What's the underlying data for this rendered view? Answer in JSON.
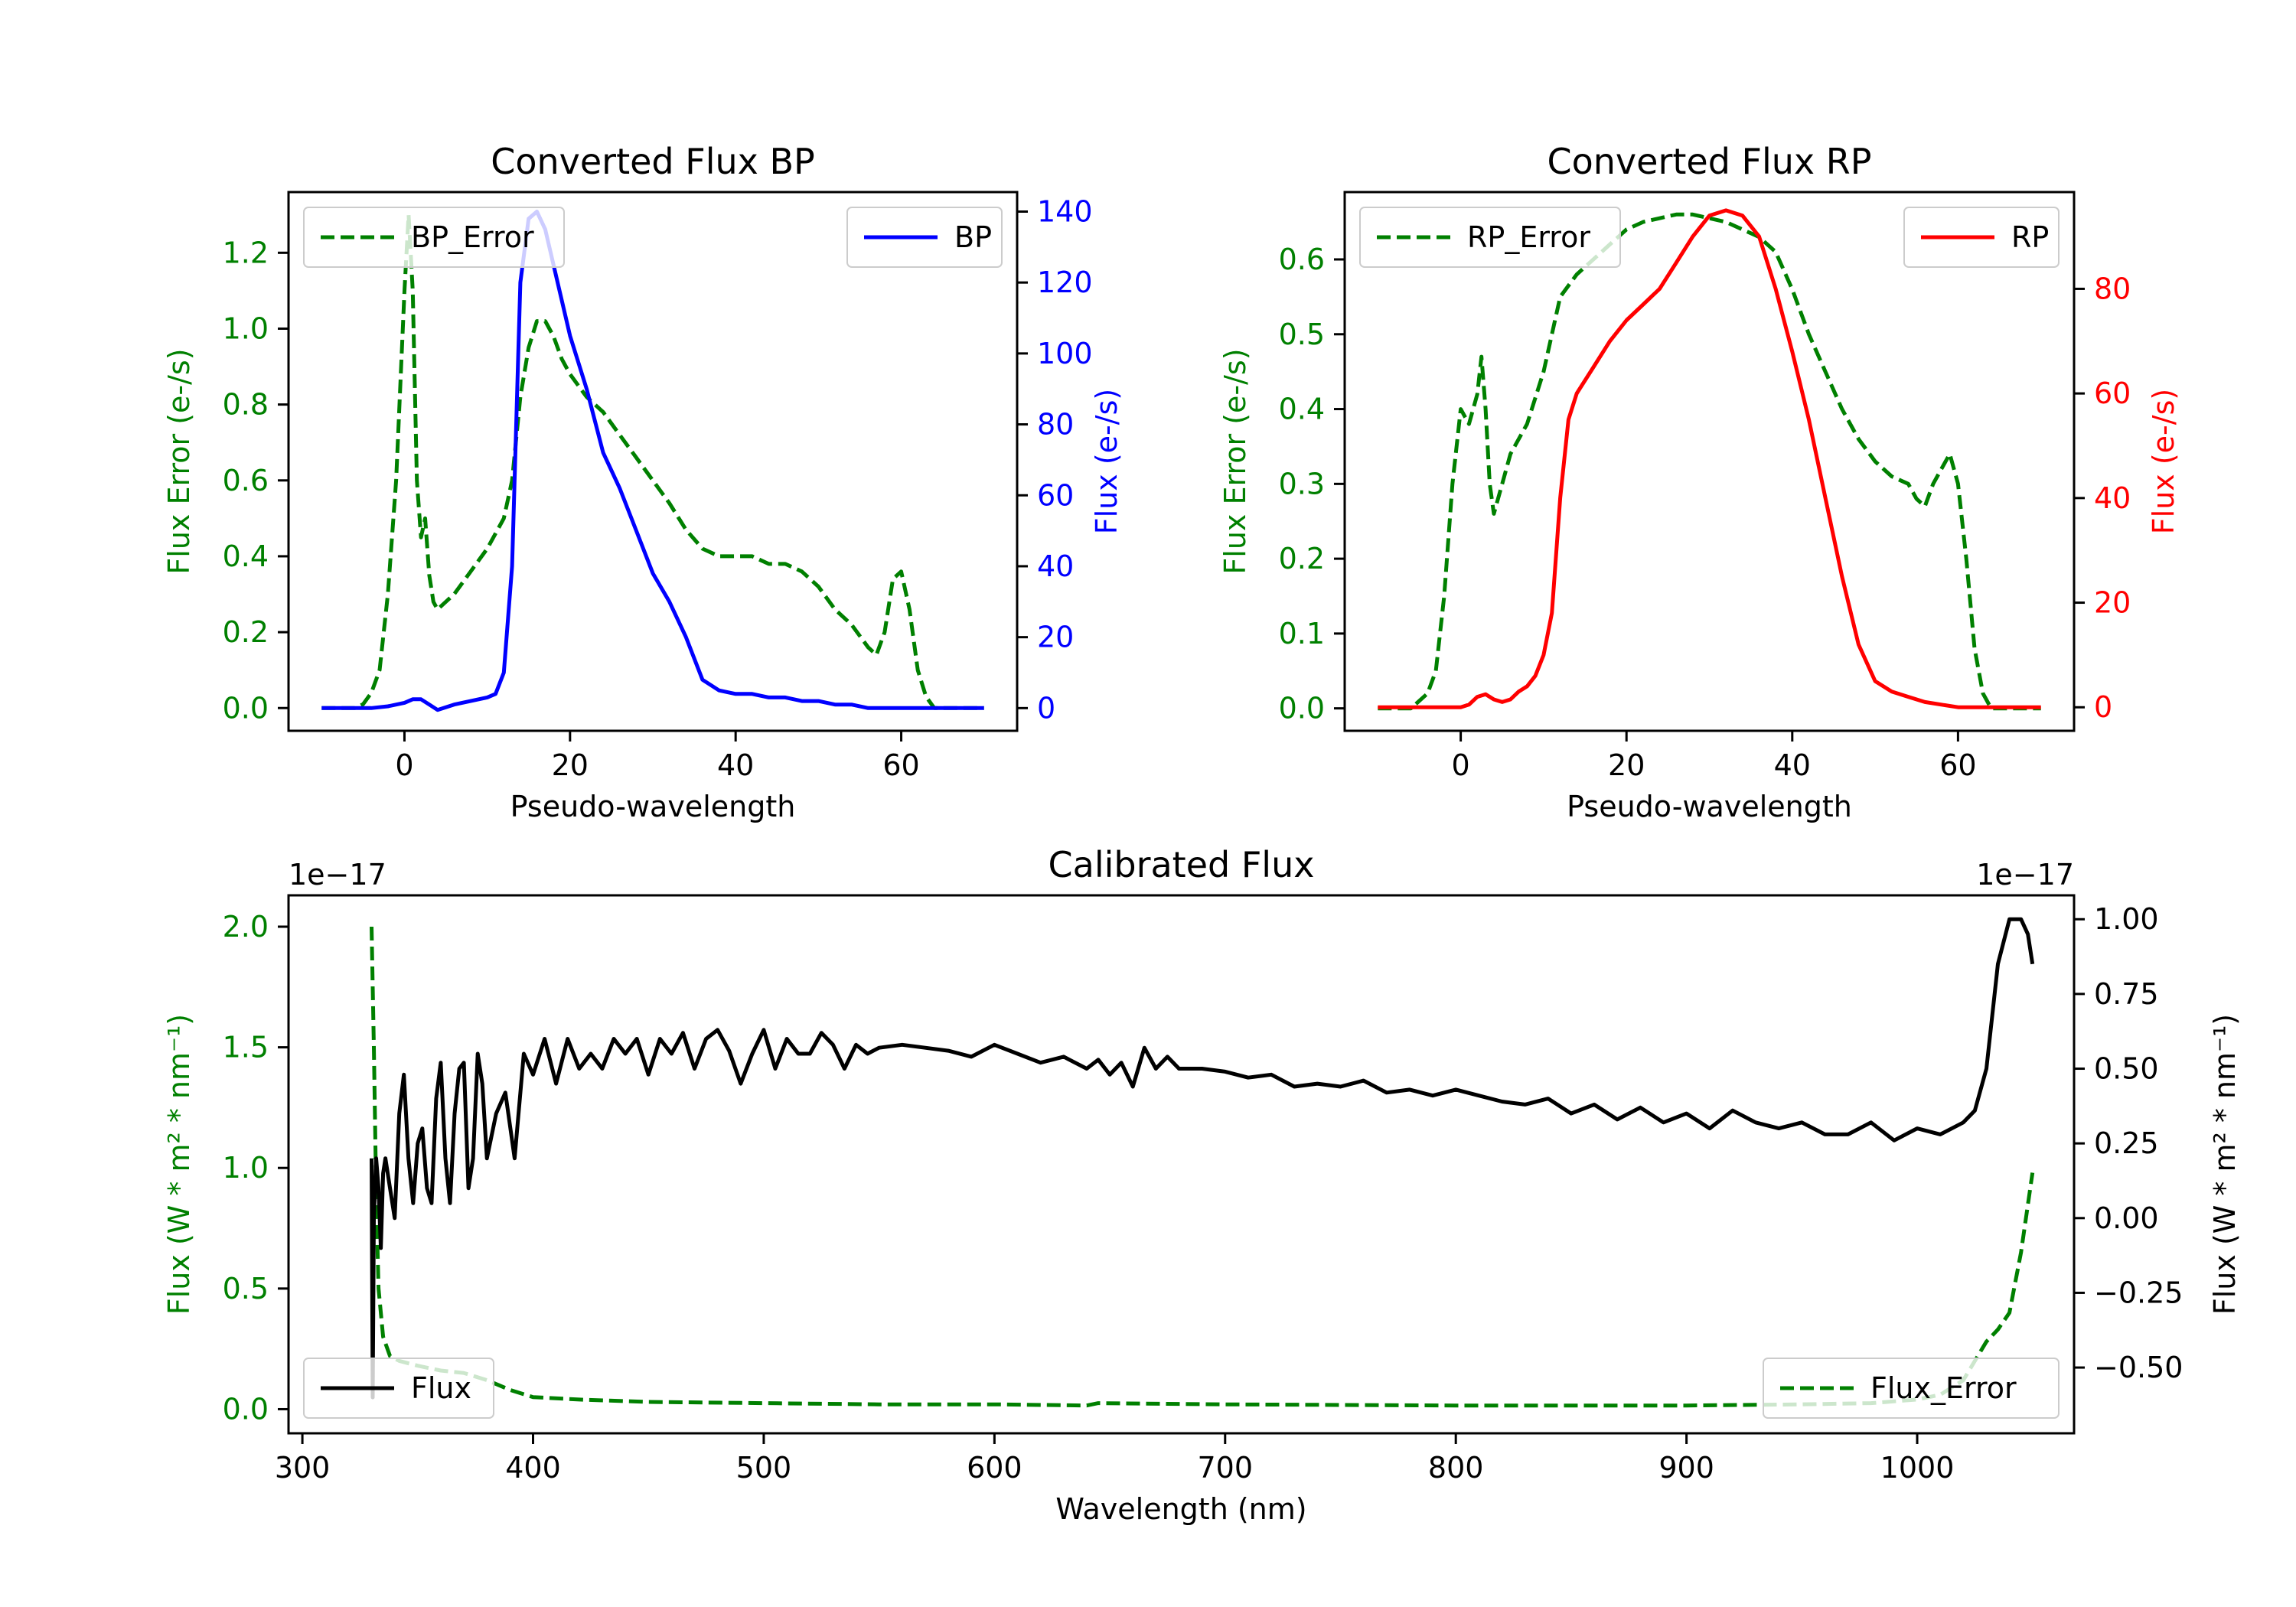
{
  "chart_data": [
    {
      "id": "bp",
      "type": "line",
      "title": "Converted Flux BP",
      "xlabel": "Pseudo-wavelength",
      "xlim": [
        -14,
        74
      ],
      "xticks": [
        0,
        20,
        40,
        60
      ],
      "left_axis": {
        "label": "Flux Error (e-/s)",
        "color": "#008000",
        "ylim": [
          -0.06,
          1.36
        ],
        "ticks": [
          0.0,
          0.2,
          0.4,
          0.6,
          0.8,
          1.0,
          1.2
        ],
        "tick_labels": [
          "0.0",
          "0.2",
          "0.4",
          "0.6",
          "0.8",
          "1.0",
          "1.2"
        ]
      },
      "right_axis": {
        "label": "Flux (e-/s)",
        "color": "#0000ff",
        "ylim": [
          -6.4,
          145.5
        ],
        "ticks": [
          0,
          20,
          40,
          60,
          80,
          100,
          120,
          140
        ],
        "tick_labels": [
          "0",
          "20",
          "40",
          "60",
          "80",
          "100",
          "120",
          "140"
        ]
      },
      "series": [
        {
          "name": "BP_Error",
          "axis": "left",
          "color": "#008000",
          "style": "dashed",
          "x": [
            -10,
            -6,
            -5,
            -4,
            -3,
            -2,
            -1,
            0,
            0.5,
            1,
            1.5,
            2,
            2.5,
            3,
            3.5,
            4,
            5,
            6,
            8,
            10,
            12,
            13,
            14,
            15,
            16,
            17,
            18,
            19,
            20,
            22,
            24,
            26,
            28,
            30,
            32,
            34,
            36,
            38,
            40,
            42,
            44,
            46,
            48,
            50,
            52,
            54,
            56,
            57,
            58,
            59,
            60,
            61,
            62,
            63,
            64,
            66,
            68,
            70
          ],
          "y": [
            0,
            0,
            0.01,
            0.04,
            0.1,
            0.3,
            0.6,
            1.1,
            1.3,
            1.1,
            0.6,
            0.45,
            0.5,
            0.35,
            0.28,
            0.26,
            0.28,
            0.3,
            0.36,
            0.42,
            0.5,
            0.6,
            0.82,
            0.95,
            1.02,
            1.02,
            0.98,
            0.92,
            0.88,
            0.82,
            0.78,
            0.72,
            0.66,
            0.6,
            0.54,
            0.47,
            0.42,
            0.4,
            0.4,
            0.4,
            0.38,
            0.38,
            0.36,
            0.32,
            0.26,
            0.22,
            0.16,
            0.14,
            0.2,
            0.34,
            0.36,
            0.26,
            0.1,
            0.03,
            0,
            0,
            0,
            0
          ]
        },
        {
          "name": "BP",
          "axis": "right",
          "color": "#0000ff",
          "style": "solid",
          "x": [
            -10,
            -6,
            -4,
            -2,
            0,
            1,
            2,
            3,
            4,
            6,
            8,
            10,
            11,
            12,
            13,
            14,
            15,
            16,
            17,
            18,
            20,
            22,
            24,
            26,
            28,
            30,
            32,
            34,
            36,
            38,
            40,
            42,
            44,
            46,
            48,
            50,
            52,
            54,
            56,
            58,
            60,
            62,
            64,
            66,
            68,
            70
          ],
          "y": [
            0,
            0,
            0,
            0.5,
            1.5,
            2.5,
            2.5,
            1,
            -0.5,
            1,
            2,
            3,
            4,
            10,
            40,
            120,
            138,
            140,
            135,
            125,
            105,
            90,
            72,
            62,
            50,
            38,
            30,
            20,
            8,
            5,
            4,
            4,
            3,
            3,
            2,
            2,
            1,
            1,
            0,
            0,
            0,
            0,
            0,
            0,
            0,
            0
          ]
        }
      ],
      "legends": [
        {
          "label": "BP_Error",
          "position": "upper-left"
        },
        {
          "label": "BP",
          "position": "upper-right"
        }
      ]
    },
    {
      "id": "rp",
      "type": "line",
      "title": "Converted Flux RP",
      "xlabel": "Pseudo-wavelength",
      "xlim": [
        -14,
        74
      ],
      "xticks": [
        0,
        20,
        40,
        60
      ],
      "left_axis": {
        "label": "Flux Error (e-/s)",
        "color": "#008000",
        "ylim": [
          -0.03,
          0.69
        ],
        "ticks": [
          0.0,
          0.1,
          0.2,
          0.3,
          0.4,
          0.5,
          0.6
        ],
        "tick_labels": [
          "0.0",
          "0.1",
          "0.2",
          "0.3",
          "0.4",
          "0.5",
          "0.6"
        ]
      },
      "right_axis": {
        "label": "Flux (e-/s)",
        "color": "#ff0000",
        "ylim": [
          -4.5,
          98.5
        ],
        "ticks": [
          0,
          20,
          40,
          60,
          80
        ],
        "tick_labels": [
          "0",
          "20",
          "40",
          "60",
          "80"
        ]
      },
      "series": [
        {
          "name": "RP_Error",
          "axis": "left",
          "color": "#008000",
          "style": "dashed",
          "x": [
            -10,
            -6,
            -4,
            -3,
            -2,
            -1,
            0,
            1,
            2,
            2.5,
            3,
            3.5,
            4,
            5,
            6,
            8,
            10,
            12,
            14,
            16,
            18,
            20,
            22,
            24,
            26,
            28,
            30,
            32,
            34,
            36,
            38,
            40,
            42,
            44,
            46,
            48,
            50,
            52,
            54,
            55,
            56,
            57,
            58,
            59,
            60,
            61,
            62,
            63,
            64,
            66,
            70
          ],
          "y": [
            0,
            0,
            0.02,
            0.05,
            0.15,
            0.3,
            0.4,
            0.38,
            0.42,
            0.47,
            0.4,
            0.3,
            0.26,
            0.3,
            0.34,
            0.38,
            0.45,
            0.55,
            0.58,
            0.6,
            0.62,
            0.64,
            0.65,
            0.655,
            0.66,
            0.66,
            0.655,
            0.65,
            0.64,
            0.63,
            0.61,
            0.56,
            0.5,
            0.45,
            0.4,
            0.36,
            0.33,
            0.31,
            0.3,
            0.28,
            0.27,
            0.3,
            0.32,
            0.34,
            0.3,
            0.2,
            0.08,
            0.02,
            0,
            0,
            0
          ]
        },
        {
          "name": "RP",
          "axis": "right",
          "color": "#ff0000",
          "style": "solid",
          "x": [
            -10,
            -6,
            -4,
            -2,
            0,
            1,
            2,
            3,
            4,
            5,
            6,
            7,
            8,
            9,
            10,
            11,
            12,
            13,
            14,
            16,
            18,
            20,
            22,
            24,
            26,
            28,
            30,
            32,
            34,
            36,
            38,
            40,
            42,
            44,
            46,
            48,
            50,
            52,
            54,
            56,
            58,
            60,
            62,
            64,
            66,
            68,
            70
          ],
          "y": [
            0,
            0,
            0,
            0,
            0,
            0.5,
            2,
            2.5,
            1.5,
            1,
            1.5,
            3,
            4,
            6,
            10,
            18,
            40,
            55,
            60,
            65,
            70,
            74,
            77,
            80,
            85,
            90,
            94,
            95,
            94,
            90,
            80,
            68,
            55,
            40,
            25,
            12,
            5,
            3,
            2,
            1,
            0.5,
            0,
            0,
            0,
            0,
            0,
            0
          ]
        }
      ],
      "legends": [
        {
          "label": "RP_Error",
          "position": "upper-left"
        },
        {
          "label": "RP",
          "position": "upper-right"
        }
      ]
    },
    {
      "id": "cal",
      "type": "line",
      "title": "Calibrated Flux",
      "xlabel": "Wavelength (nm)",
      "xlim": [
        294,
        1068
      ],
      "xticks": [
        300,
        400,
        500,
        600,
        700,
        800,
        900,
        1000
      ],
      "left_axis": {
        "label": "Flux (W * m² * nm⁻¹)",
        "color": "#008000",
        "exponent": "1e−17",
        "ylim": [
          -0.1,
          2.13
        ],
        "ticks": [
          0.0,
          0.5,
          1.0,
          1.5,
          2.0
        ],
        "tick_labels": [
          "0.0",
          "0.5",
          "1.0",
          "1.5",
          "2.0"
        ]
      },
      "right_axis": {
        "label": "Flux (W * m² * nm⁻¹)",
        "color": "#000000",
        "exponent": "1e−17",
        "ylim": [
          -0.72,
          1.08
        ],
        "ticks": [
          -0.5,
          -0.25,
          0.0,
          0.25,
          0.5,
          0.75,
          1.0
        ],
        "tick_labels": [
          "−0.50",
          "−0.25",
          "0.00",
          "0.25",
          "0.50",
          "0.75",
          "1.00"
        ]
      },
      "series": [
        {
          "name": "Flux_Error",
          "axis": "left",
          "color": "#008000",
          "style": "dashed",
          "x": [
            330,
            331,
            332,
            333,
            335,
            338,
            342,
            350,
            360,
            370,
            380,
            390,
            400,
            420,
            450,
            500,
            550,
            600,
            640,
            645,
            700,
            800,
            900,
            950,
            980,
            1000,
            1010,
            1020,
            1030,
            1035,
            1040,
            1045,
            1050
          ],
          "y": [
            2.0,
            1.5,
            0.9,
            0.5,
            0.3,
            0.22,
            0.2,
            0.18,
            0.16,
            0.15,
            0.12,
            0.08,
            0.05,
            0.04,
            0.03,
            0.025,
            0.02,
            0.02,
            0.015,
            0.025,
            0.02,
            0.015,
            0.015,
            0.02,
            0.025,
            0.04,
            0.06,
            0.12,
            0.28,
            0.33,
            0.4,
            0.65,
            0.98
          ]
        },
        {
          "name": "Flux",
          "axis": "right",
          "color": "#000000",
          "style": "solid",
          "x": [
            330,
            330.5,
            331,
            332,
            333,
            334,
            335,
            336,
            338,
            340,
            342,
            344,
            346,
            348,
            350,
            352,
            354,
            356,
            358,
            360,
            362,
            364,
            366,
            368,
            370,
            372,
            374,
            376,
            378,
            380,
            384,
            388,
            392,
            396,
            400,
            405,
            410,
            415,
            420,
            425,
            430,
            435,
            440,
            445,
            450,
            455,
            460,
            465,
            470,
            475,
            480,
            485,
            490,
            495,
            500,
            505,
            510,
            515,
            520,
            525,
            530,
            535,
            540,
            545,
            550,
            560,
            570,
            580,
            590,
            600,
            610,
            620,
            630,
            640,
            645,
            650,
            655,
            660,
            665,
            670,
            675,
            680,
            690,
            700,
            710,
            720,
            730,
            740,
            750,
            760,
            770,
            780,
            790,
            800,
            810,
            820,
            830,
            840,
            850,
            860,
            870,
            880,
            890,
            900,
            910,
            920,
            930,
            940,
            950,
            960,
            970,
            980,
            990,
            1000,
            1010,
            1020,
            1025,
            1030,
            1035,
            1040,
            1045,
            1048,
            1050
          ],
          "y": [
            0.2,
            -0.6,
            0.0,
            0.2,
            0.1,
            -0.1,
            0.15,
            0.2,
            0.1,
            0.0,
            0.35,
            0.48,
            0.2,
            0.05,
            0.25,
            0.3,
            0.1,
            0.05,
            0.4,
            0.52,
            0.2,
            0.05,
            0.35,
            0.5,
            0.52,
            0.1,
            0.2,
            0.55,
            0.45,
            0.2,
            0.35,
            0.42,
            0.2,
            0.55,
            0.48,
            0.6,
            0.45,
            0.6,
            0.5,
            0.55,
            0.5,
            0.6,
            0.55,
            0.6,
            0.48,
            0.6,
            0.55,
            0.62,
            0.5,
            0.6,
            0.63,
            0.56,
            0.45,
            0.55,
            0.63,
            0.5,
            0.6,
            0.55,
            0.55,
            0.62,
            0.58,
            0.5,
            0.58,
            0.55,
            0.57,
            0.58,
            0.57,
            0.56,
            0.54,
            0.58,
            0.55,
            0.52,
            0.54,
            0.5,
            0.53,
            0.48,
            0.52,
            0.44,
            0.57,
            0.5,
            0.54,
            0.5,
            0.5,
            0.49,
            0.47,
            0.48,
            0.44,
            0.45,
            0.44,
            0.46,
            0.42,
            0.43,
            0.41,
            0.43,
            0.41,
            0.39,
            0.38,
            0.4,
            0.35,
            0.38,
            0.33,
            0.37,
            0.32,
            0.35,
            0.3,
            0.36,
            0.32,
            0.3,
            0.32,
            0.28,
            0.28,
            0.32,
            0.26,
            0.3,
            0.28,
            0.32,
            0.36,
            0.5,
            0.85,
            1.0,
            1.0,
            0.95,
            0.85
          ]
        }
      ],
      "legends": [
        {
          "label": "Flux",
          "position": "lower-left"
        },
        {
          "label": "Flux_Error",
          "position": "lower-right"
        }
      ]
    }
  ]
}
